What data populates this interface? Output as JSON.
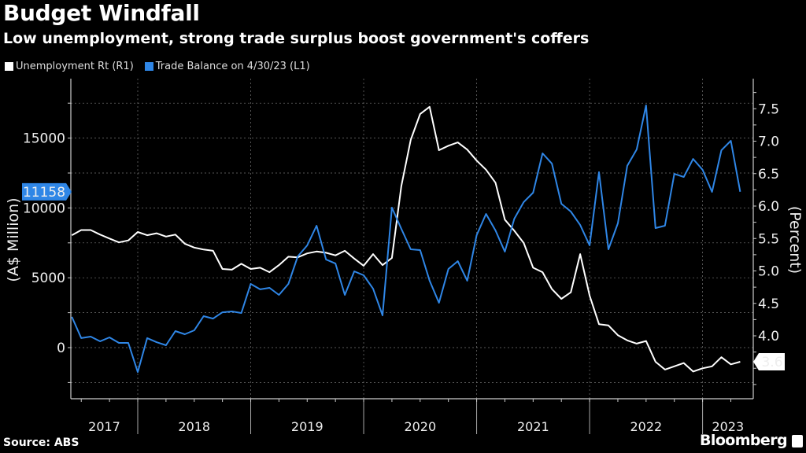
{
  "header": {
    "title": "Budget Windfall",
    "subtitle": "Low unemployment, strong trade surplus boost government's coffers"
  },
  "footer": {
    "source": "Source: ABS",
    "brand": "Bloomberg"
  },
  "colors": {
    "background": "#000000",
    "unemployment": "#ffffff",
    "trade_balance": "#2f86e6"
  },
  "chart_data": {
    "type": "line",
    "title": "Budget Windfall",
    "subtitle": "Low unemployment, strong trade surplus boost government's coffers",
    "legend": [
      "Unemployment Rt (R1)",
      "Trade Balance on 4/30/23 (L1)"
    ],
    "legend_position": "top-left",
    "x_start": "2017-06",
    "x_tick_labels": [
      "2017",
      "2018",
      "2019",
      "2020",
      "2021",
      "2022",
      "2023"
    ],
    "left_axis": {
      "label": "(A$ Million)",
      "ticks": [
        0,
        5000,
        10000,
        15000
      ],
      "range": [
        -2500,
        18500
      ]
    },
    "right_axis": {
      "label": "(Percent)",
      "ticks": [
        "4.0",
        "4.5",
        "5.0",
        "5.5",
        "6.0",
        "6.5",
        "7.0",
        "7.5"
      ],
      "range": [
        3.0,
        7.9
      ]
    },
    "grid": true,
    "series": [
      {
        "name": "Unemployment Rt (R1)",
        "axis": "right",
        "last_value_label": "3.6",
        "values": [
          5.55,
          5.63,
          5.63,
          5.56,
          5.5,
          5.44,
          5.47,
          5.6,
          5.55,
          5.58,
          5.53,
          5.56,
          5.42,
          5.36,
          5.33,
          5.31,
          5.03,
          5.02,
          5.11,
          5.03,
          5.05,
          4.98,
          5.09,
          5.22,
          5.21,
          5.27,
          5.3,
          5.28,
          5.24,
          5.31,
          5.19,
          5.08,
          5.26,
          5.09,
          5.2,
          6.31,
          7.02,
          7.42,
          7.53,
          6.86,
          6.93,
          6.98,
          6.87,
          6.7,
          6.56,
          6.36,
          5.79,
          5.62,
          5.43,
          5.05,
          4.98,
          4.72,
          4.57,
          4.67,
          5.26,
          4.62,
          4.18,
          4.16,
          4.01,
          3.93,
          3.88,
          3.92,
          3.6,
          3.48,
          3.53,
          3.58,
          3.45,
          3.5,
          3.53,
          3.67,
          3.56,
          3.6
        ]
      },
      {
        "name": "Trade Balance on 4/30/23 (L1)",
        "axis": "left",
        "last_value_label": "11158",
        "values": [
          2200,
          680,
          790,
          450,
          730,
          340,
          340,
          -1750,
          680,
          390,
          170,
          1180,
          960,
          1240,
          2250,
          2080,
          2530,
          2590,
          2480,
          4560,
          4170,
          4280,
          3770,
          4560,
          6530,
          7320,
          8730,
          6310,
          6020,
          3770,
          5460,
          5180,
          4220,
          2310,
          10020,
          8500,
          7040,
          6980,
          4790,
          3210,
          5630,
          6190,
          4790,
          8050,
          9570,
          8390,
          6870,
          9230,
          10420,
          11090,
          13910,
          13170,
          10300,
          9740,
          8780,
          7320,
          12560,
          7040,
          8900,
          13010,
          14190,
          17340,
          8560,
          8730,
          12440,
          12220,
          13510,
          12730,
          11150,
          14130,
          14810,
          11158
        ]
      }
    ]
  }
}
